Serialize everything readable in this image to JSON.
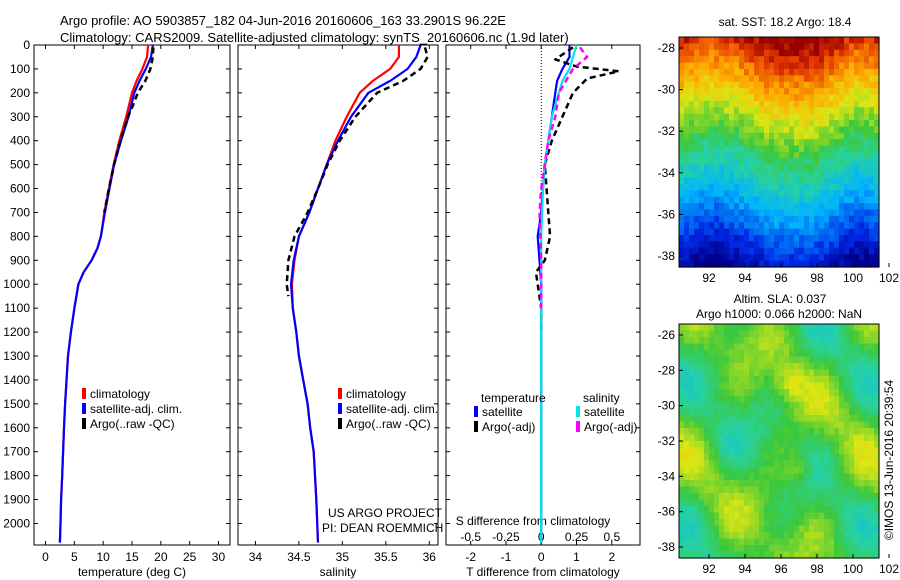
{
  "header": {
    "line1": "Argo profile: AO 5903857_182 04-Jun-2016 20160606_163 33.2901S 96.22E",
    "line2": "Climatology: CARS2009. Satellite-adjusted climatology: synTS_20160606.nc (1.9d later)"
  },
  "colors": {
    "climatology": "#ff0000",
    "satellite": "#0000ff",
    "argo": "#000000",
    "sal_satellite": "#00e5e5",
    "sal_argo": "#ff00ff"
  },
  "chart_data": [
    {
      "type": "line",
      "id": "temperature",
      "xlabel": "temperature (deg C)",
      "xlim": [
        -2,
        32
      ],
      "xticks": [
        0,
        5,
        10,
        15,
        20,
        25,
        30
      ],
      "ylim": [
        2090,
        0
      ],
      "yticks": [
        0,
        100,
        200,
        300,
        400,
        500,
        600,
        700,
        800,
        900,
        1000,
        1100,
        1200,
        1300,
        1400,
        1500,
        1600,
        1700,
        1800,
        1900,
        2000
      ],
      "legend": [
        "climatology",
        "satellite-adj. clim.",
        "Argo(..raw -QC)"
      ],
      "series": [
        {
          "name": "climatology",
          "color": "#ff0000",
          "x": [
            17.8,
            17.6,
            16.8,
            15.8,
            15.0,
            14.0,
            12.8,
            11.8,
            11.0,
            10.2,
            9.6,
            9.0,
            8.0,
            6.6,
            5.7,
            5.0,
            4.4,
            3.9,
            3.4,
            3.2,
            2.9,
            2.7,
            2.6,
            2.5
          ],
          "y": [
            0,
            50,
            100,
            150,
            200,
            300,
            400,
            500,
            600,
            700,
            800,
            850,
            900,
            950,
            1000,
            1100,
            1200,
            1300,
            1500,
            1600,
            1800,
            1900,
            2000,
            2080
          ]
        },
        {
          "name": "satellite-adj. clim.",
          "color": "#0000ff",
          "x": [
            18.6,
            18.3,
            17.4,
            16.3,
            15.4,
            14.4,
            13.1,
            11.9,
            11.1,
            10.3,
            9.6,
            9.0,
            8.0,
            6.6,
            5.7,
            5.0,
            4.4,
            3.9,
            3.4,
            3.2,
            2.9,
            2.7,
            2.6,
            2.5
          ],
          "y": [
            0,
            50,
            100,
            150,
            200,
            300,
            400,
            500,
            600,
            700,
            800,
            850,
            900,
            950,
            1000,
            1100,
            1200,
            1300,
            1500,
            1600,
            1800,
            1900,
            2000,
            2080
          ]
        },
        {
          "name": "Argo(..raw -QC)",
          "color": "#000000",
          "dashed": true,
          "x": [
            18.7,
            18.6,
            18.2,
            17.3,
            16.0,
            15.2,
            14.3,
            13.0,
            11.9,
            11.0,
            10.2
          ],
          "y": [
            10,
            50,
            100,
            150,
            200,
            250,
            300,
            400,
            500,
            600,
            700
          ]
        }
      ]
    },
    {
      "type": "line",
      "id": "salinity",
      "xlabel": "salinity",
      "xlim": [
        33.8,
        36.1
      ],
      "xticks": [
        34,
        34.5,
        35,
        35.5,
        36
      ],
      "ylim": [
        2090,
        0
      ],
      "legend": [
        "climatology",
        "satellite-adj. clim.",
        "Argo(..raw -QC)"
      ],
      "series": [
        {
          "name": "climatology",
          "color": "#ff0000",
          "x": [
            35.65,
            35.65,
            35.55,
            35.35,
            35.2,
            35.05,
            34.92,
            34.82,
            34.72,
            34.62,
            34.5,
            34.45,
            34.42,
            34.43,
            34.47,
            34.5,
            34.55,
            34.6,
            34.63,
            34.67,
            34.7,
            34.72
          ],
          "y": [
            0,
            50,
            100,
            150,
            200,
            300,
            400,
            500,
            600,
            700,
            800,
            900,
            1000,
            1100,
            1200,
            1300,
            1400,
            1500,
            1600,
            1700,
            1900,
            2080
          ]
        },
        {
          "name": "satellite-adj. clim.",
          "color": "#0000ff",
          "x": [
            35.9,
            35.85,
            35.75,
            35.55,
            35.3,
            35.1,
            34.95,
            34.82,
            34.72,
            34.62,
            34.5,
            34.44,
            34.41,
            34.43,
            34.47,
            34.5,
            34.55,
            34.6,
            34.63,
            34.67,
            34.7,
            34.72
          ],
          "y": [
            0,
            50,
            100,
            150,
            200,
            300,
            400,
            500,
            600,
            700,
            800,
            900,
            1000,
            1100,
            1200,
            1300,
            1400,
            1500,
            1600,
            1700,
            1900,
            2080
          ]
        },
        {
          "name": "Argo(..raw -QC)",
          "color": "#000000",
          "dashed": true,
          "x": [
            35.95,
            35.98,
            35.9,
            35.7,
            35.4,
            35.15,
            34.97,
            34.83,
            34.72,
            34.6,
            34.45,
            34.38,
            34.36,
            34.38
          ],
          "y": [
            10,
            50,
            100,
            150,
            200,
            300,
            400,
            500,
            600,
            700,
            800,
            900,
            1000,
            1050
          ]
        }
      ]
    },
    {
      "type": "line",
      "id": "difference",
      "xlabel": "T difference from climatology",
      "xlabel2": "S difference from climatology",
      "xlim": [
        -2.7,
        2.8
      ],
      "xticks": [
        -2,
        -1,
        0,
        1,
        2
      ],
      "xticks2": [
        "-0.5",
        "-0.25",
        "0",
        "0.25",
        "0.5"
      ],
      "xticks2_pos": [
        -2,
        -1,
        0,
        1,
        2
      ],
      "ylim": [
        2090,
        0
      ],
      "legend_headers": [
        "temperature",
        "salinity"
      ],
      "legend": [
        "satellite",
        "Argo(-adj)",
        "satellite",
        "Argo(-adj)"
      ],
      "series": [
        {
          "name": "temperature satellite",
          "color": "#0000ff",
          "x": [
            0.8,
            0.8,
            0.6,
            0.45,
            0.4,
            0.3,
            0.2,
            0.1,
            0.05,
            0.0,
            -0.1,
            -0.05,
            0.0,
            0.0,
            0.0,
            0.0,
            0.0
          ],
          "y": [
            0,
            50,
            100,
            150,
            200,
            300,
            400,
            500,
            600,
            700,
            800,
            900,
            1000,
            1200,
            1500,
            1800,
            2080
          ]
        },
        {
          "name": "temperature Argo(-adj)",
          "color": "#000000",
          "dashed": true,
          "x": [
            0.9,
            0.4,
            1.0,
            2.2,
            1.3,
            0.9,
            0.6,
            0.3,
            0.1,
            0.2,
            0.25,
            0.1,
            -0.15,
            -0.1,
            0.0,
            0.0
          ],
          "y": [
            10,
            60,
            90,
            110,
            140,
            200,
            300,
            400,
            500,
            700,
            800,
            900,
            950,
            1000,
            1100,
            1200
          ]
        },
        {
          "name": "salinity satellite",
          "color": "#00e5e5",
          "x": [
            1.0,
            0.9,
            0.8,
            0.6,
            0.5,
            0.3,
            0.2,
            0.1,
            0.05,
            0.0,
            0.0,
            0.0,
            0.0,
            0.0,
            0.0
          ],
          "y": [
            0,
            50,
            100,
            150,
            200,
            300,
            400,
            500,
            600,
            800,
            1000,
            1200,
            1500,
            1800,
            2080
          ]
        },
        {
          "name": "salinity Argo(-adj)",
          "color": "#ff00ff",
          "dashed": true,
          "x": [
            1.1,
            1.3,
            0.9,
            0.5,
            0.4,
            0.2,
            0.1,
            0.0,
            -0.05,
            0.0,
            0.0
          ],
          "y": [
            10,
            50,
            100,
            200,
            300,
            400,
            500,
            600,
            700,
            900,
            1100
          ]
        }
      ]
    }
  ],
  "maps": {
    "sst": {
      "title": "sat. SST: 18.2  Argo: 18.4",
      "lon_ticks": [
        "92",
        "94",
        "96",
        "98",
        "100",
        "102"
      ],
      "lat_ticks": [
        "-28",
        "-30",
        "-32",
        "-34",
        "-36",
        "-38"
      ]
    },
    "sla": {
      "title1": "Altim. SLA: 0.037",
      "title2": "Argo h1000: 0.066  h2000: NaN",
      "lon_ticks": [
        "92",
        "94",
        "96",
        "98",
        "100",
        "102"
      ],
      "lat_ticks": [
        "-26",
        "-28",
        "-30",
        "-32",
        "-34",
        "-36",
        "-38"
      ]
    }
  },
  "annotations": {
    "project1": "US ARGO PROJECT",
    "project2": "PI: DEAN ROEMMICH",
    "credit": "©IMOS 13-Jun-2016 20:39:54"
  }
}
